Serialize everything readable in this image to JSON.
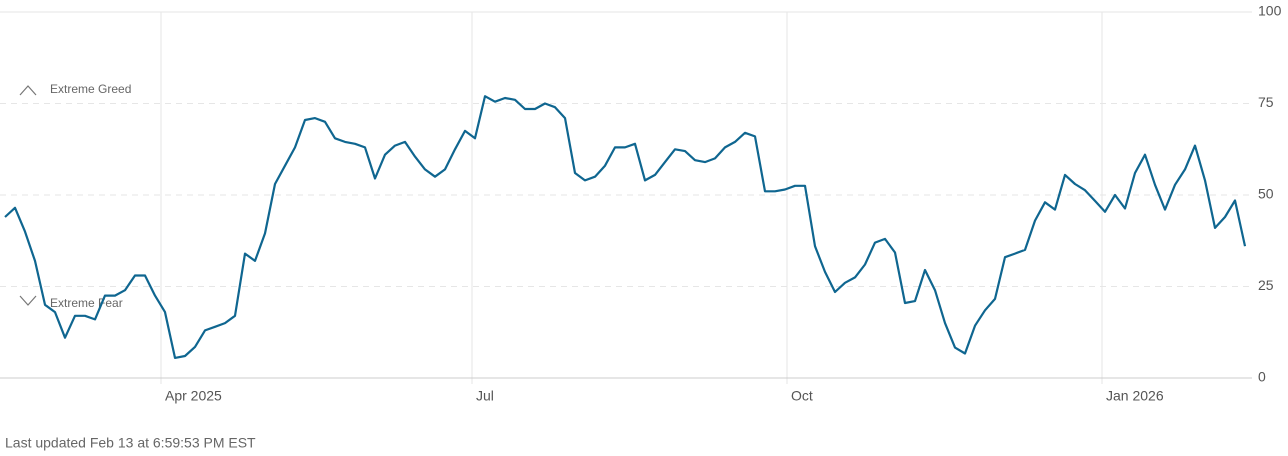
{
  "chart_data": {
    "type": "line",
    "annotations": [
      "Extreme Greed",
      "Extreme Fear"
    ],
    "footer": "Last updated Feb 13 at 6:59:53 PM EST",
    "series": [
      {
        "color": "#0f6690",
        "values": [
          44,
          46.5,
          40,
          32,
          20,
          18,
          11,
          17,
          17,
          16,
          22.5,
          22.5,
          24,
          28,
          28,
          22.5,
          18,
          5.5,
          6,
          8.5,
          13,
          14,
          15,
          17,
          34,
          32,
          39.5,
          53,
          58,
          63,
          70.5,
          71,
          70,
          65.5,
          64.5,
          64,
          63,
          54.5,
          61,
          63.5,
          64.5,
          60.5,
          57,
          55,
          57,
          62.5,
          67.5,
          65.5,
          77,
          75.5,
          76.5,
          76,
          73.5,
          73.5,
          75,
          74,
          71,
          56,
          54,
          55,
          58,
          63,
          63,
          64,
          54,
          55.5,
          59,
          62.5,
          62,
          59.5,
          59,
          60,
          63,
          64.5,
          67,
          66,
          51,
          51,
          51.5,
          52.5,
          52.5,
          36,
          29,
          23.5,
          26,
          27.5,
          31,
          37,
          38,
          34.3,
          20.5,
          21,
          29.5,
          24,
          15,
          8.3,
          6.7,
          14.3,
          18.5,
          21.6,
          33,
          34,
          35,
          43,
          48,
          46,
          55.5,
          53,
          51.3,
          48.4,
          45.4,
          50,
          46.3,
          56,
          61,
          52.8,
          46,
          52.8,
          57,
          63.5,
          54,
          41,
          44,
          48.5,
          36
        ]
      }
    ],
    "xlim": [
      0,
      124
    ],
    "xticks": [
      {
        "value": 15.6,
        "label": "Apr 2025"
      },
      {
        "value": 46.7,
        "label": "Jul"
      },
      {
        "value": 78.2,
        "label": "Oct"
      },
      {
        "value": 109.7,
        "label": "Jan 2026"
      }
    ],
    "ylim": [
      0,
      100
    ],
    "yticks": [
      0,
      25,
      50,
      75,
      100
    ],
    "grid": true
  }
}
